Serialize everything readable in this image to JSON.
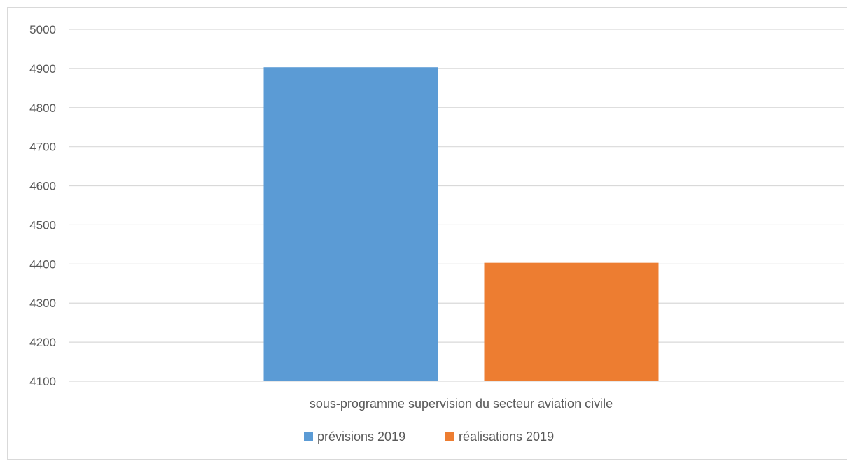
{
  "chart_data": {
    "type": "bar",
    "title": "",
    "xlabel": "",
    "ylabel": "",
    "categories": [
      "sous-programme supervision du secteur aviation civile"
    ],
    "series": [
      {
        "name": "prévisions 2019",
        "color": "#5b9bd5",
        "values": [
          4903
        ]
      },
      {
        "name": "réalisations 2019",
        "color": "#ed7d31",
        "values": [
          4403
        ]
      }
    ],
    "ylim": [
      4100,
      5000
    ],
    "yticks": [
      4100,
      4200,
      4300,
      4400,
      4500,
      4600,
      4700,
      4800,
      4900,
      5000
    ],
    "grid": true,
    "legend_position": "bottom",
    "colors": {
      "gridline": "#d9d9d9",
      "axis_text": "#595959"
    }
  }
}
